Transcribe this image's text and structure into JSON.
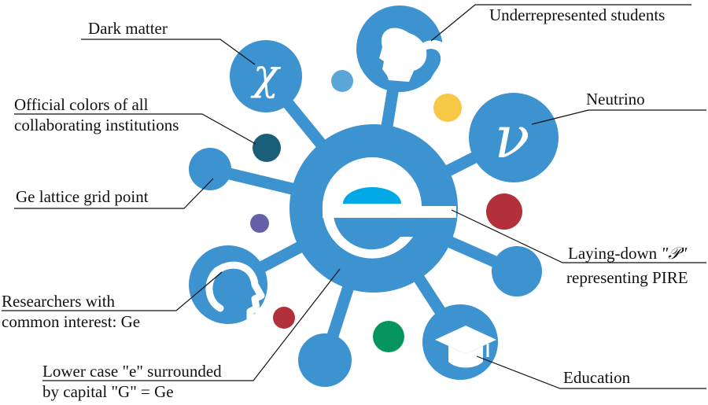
{
  "colors": {
    "primary_blue": "#3d92d0",
    "light_blue_dot": "#5aa6d6",
    "inner_e_cyan": "#00a8e6",
    "dark_teal": "#1b5e7a",
    "yellow": "#f6c846",
    "red": "#b1303a",
    "purple": "#6560a9",
    "green": "#06955f",
    "leader_line": "#111111"
  },
  "icons": {
    "chi_node": "chi-letter-icon",
    "female_node": "female-head-silhouette-icon",
    "nu_node": "nu-letter-icon",
    "male_node": "male-head-silhouette-icon",
    "education_node": "graduation-cap-icon",
    "center": "letter-e-in-G-logo"
  },
  "glyphs": {
    "chi": "χ",
    "nu": "ν",
    "center_e": "e"
  },
  "labels": {
    "dark_matter": "Dark matter",
    "underrepresented": "Underrepresented students",
    "neutrino": "Neutrino",
    "official_colors_1": "Official colors of all",
    "official_colors_2": "collaborating institutions",
    "ge_lattice": "Ge lattice grid point",
    "laying_down_prefix": "Laying-down",
    "laying_down_symbol": "\"𝒫\"",
    "representing_pire": "representing PIRE",
    "researchers_1": "Researchers with",
    "researchers_2": "common interest: Ge",
    "lower_case_1": "Lower case \"e\" surrounded",
    "lower_case_2": "by capital \"G\" = Ge",
    "education": "Education"
  }
}
